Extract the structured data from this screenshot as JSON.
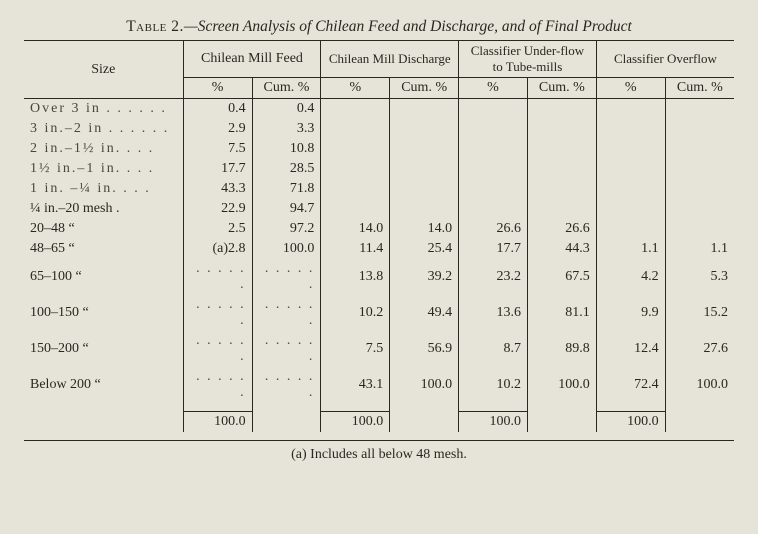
{
  "title_prefix": "Table 2.",
  "title_rest": "—Screen Analysis of Chilean Feed and Discharge, and of Final Product",
  "columns": {
    "size": "Size",
    "groups": [
      "Chilean Mill Feed",
      "Chilean Mill Discharge",
      "Classifier Under-flow to Tube-mills",
      "Classifier Overflow"
    ],
    "sub_pct": "%",
    "sub_cum": "Cum. %"
  },
  "rows": [
    {
      "size": "Over 3 in . . . . . .",
      "feed_pct": "0.4",
      "feed_cum": "0.4",
      "disch_pct": "",
      "disch_cum": "",
      "uf_pct": "",
      "uf_cum": "",
      "of_pct": "",
      "of_cum": ""
    },
    {
      "size": "3 in.–2 in . . . . . .",
      "feed_pct": "2.9",
      "feed_cum": "3.3",
      "disch_pct": "",
      "disch_cum": "",
      "uf_pct": "",
      "uf_cum": "",
      "of_pct": "",
      "of_cum": ""
    },
    {
      "size": "2 in.–1½ in. . . .",
      "feed_pct": "7.5",
      "feed_cum": "10.8",
      "disch_pct": "",
      "disch_cum": "",
      "uf_pct": "",
      "uf_cum": "",
      "of_pct": "",
      "of_cum": ""
    },
    {
      "size": "1½ in.–1 in. . . .",
      "feed_pct": "17.7",
      "feed_cum": "28.5",
      "disch_pct": "",
      "disch_cum": "",
      "uf_pct": "",
      "uf_cum": "",
      "of_pct": "",
      "of_cum": ""
    },
    {
      "size": "1 in. –¼ in. . . .",
      "feed_pct": "43.3",
      "feed_cum": "71.8",
      "disch_pct": "",
      "disch_cum": "",
      "uf_pct": "",
      "uf_cum": "",
      "of_pct": "",
      "of_cum": ""
    },
    {
      "size": "¼ in.–20 mesh .",
      "feed_pct": "22.9",
      "feed_cum": "94.7",
      "disch_pct": "",
      "disch_cum": "",
      "uf_pct": "",
      "uf_cum": "",
      "of_pct": "",
      "of_cum": ""
    },
    {
      "size": "20–48        “",
      "feed_pct": "2.5",
      "feed_cum": "97.2",
      "disch_pct": "14.0",
      "disch_cum": "14.0",
      "uf_pct": "26.6",
      "uf_cum": "26.6",
      "of_pct": "",
      "of_cum": ""
    },
    {
      "size": "48–65        “",
      "feed_pct": "(a)2.8",
      "feed_cum": "100.0",
      "disch_pct": "11.4",
      "disch_cum": "25.4",
      "uf_pct": "17.7",
      "uf_cum": "44.3",
      "of_pct": "1.1",
      "of_cum": "1.1"
    },
    {
      "size": "65–100       “",
      "feed_pct": ". . . . . .",
      "feed_cum": ". . . . . .",
      "disch_pct": "13.8",
      "disch_cum": "39.2",
      "uf_pct": "23.2",
      "uf_cum": "67.5",
      "of_pct": "4.2",
      "of_cum": "5.3"
    },
    {
      "size": "100–150      “",
      "feed_pct": ". . . . . .",
      "feed_cum": ". . . . . .",
      "disch_pct": "10.2",
      "disch_cum": "49.4",
      "uf_pct": "13.6",
      "uf_cum": "81.1",
      "of_pct": "9.9",
      "of_cum": "15.2"
    },
    {
      "size": "150–200      “",
      "feed_pct": ". . . . . .",
      "feed_cum": ". . . . . .",
      "disch_pct": "7.5",
      "disch_cum": "56.9",
      "uf_pct": "8.7",
      "uf_cum": "89.8",
      "of_pct": "12.4",
      "of_cum": "27.6"
    },
    {
      "size": "Below 200  “",
      "feed_pct": ". . . . . .",
      "feed_cum": ". . . . . .",
      "disch_pct": "43.1",
      "disch_cum": "100.0",
      "uf_pct": "10.2",
      "uf_cum": "100.0",
      "of_pct": "72.4",
      "of_cum": "100.0"
    }
  ],
  "totals": {
    "feed": "100.0",
    "disch": "100.0",
    "uf": "100.0",
    "of": "100.0"
  },
  "footnote": "(a)  Includes all below 48 mesh."
}
